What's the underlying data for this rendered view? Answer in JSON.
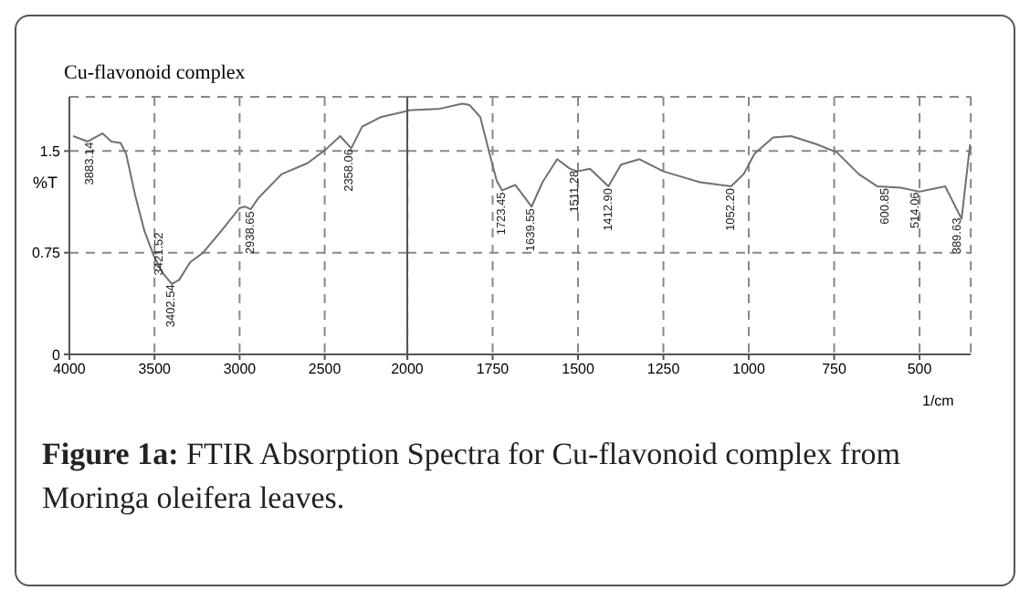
{
  "chart_data": [
    {
      "type": "line",
      "title": "Cu-flavonoid complex",
      "ylabel": "%T",
      "x": [
        3978,
        3892,
        3806,
        3753,
        3699,
        3667,
        3613,
        3559,
        3505,
        3452,
        3398,
        3355,
        3290,
        3215,
        3108,
        3000,
        2968,
        2935,
        2892,
        2753,
        2602,
        2495,
        2409,
        2344,
        2280,
        2172,
        2000
      ],
      "series": [
        {
          "color": "#707070",
          "values": [
            1.61,
            1.57,
            1.63,
            1.57,
            1.56,
            1.48,
            1.17,
            0.91,
            0.73,
            0.6,
            0.52,
            0.55,
            0.68,
            0.75,
            0.91,
            1.08,
            1.09,
            1.07,
            1.15,
            1.33,
            1.41,
            1.51,
            1.61,
            1.52,
            1.68,
            1.75,
            1.8
          ]
        }
      ],
      "xlim": [
        4000,
        2000
      ],
      "xticks": [
        4000,
        3500,
        3000,
        2500,
        {
          "value": 2000,
          "label": null
        }
      ],
      "ylim": [
        0,
        1.9
      ],
      "yticks": [
        0,
        0.75,
        1.5
      ],
      "grid": true,
      "marker": "none",
      "line_style": "solid",
      "annotations": [
        {
          "text": "3883.14",
          "x": 3883.14,
          "y": 1.58
        },
        {
          "text": "3421.52",
          "x": 3421.52,
          "y": 0.57
        },
        {
          "text": "3402.54",
          "x": 3402.54,
          "y": 0.53
        },
        {
          "text": "2938.65",
          "x": 2938.65,
          "y": 1.07
        },
        {
          "text": "2358.06",
          "x": 2358.06,
          "y": 1.53
        }
      ]
    },
    {
      "type": "line",
      "xlabel": "1/cm",
      "x": [
        2000,
        1909,
        1839,
        1818,
        1786,
        1759,
        1738,
        1722,
        1684,
        1636,
        1604,
        1561,
        1524,
        1502,
        1465,
        1411,
        1374,
        1320,
        1250,
        1143,
        1052,
        1015,
        983,
        929,
        876,
        801,
        742,
        678,
        624,
        555,
        500,
        425,
        393,
        377,
        352
      ],
      "series": [
        {
          "color": "#707070",
          "values": [
            1.8,
            1.81,
            1.85,
            1.84,
            1.75,
            1.48,
            1.28,
            1.21,
            1.25,
            1.09,
            1.27,
            1.44,
            1.37,
            1.35,
            1.37,
            1.24,
            1.4,
            1.44,
            1.35,
            1.27,
            1.24,
            1.33,
            1.48,
            1.6,
            1.61,
            1.55,
            1.49,
            1.33,
            1.24,
            1.23,
            1.2,
            1.24,
            1.08,
            1.0,
            1.55
          ]
        }
      ],
      "xlim": [
        2000,
        350
      ],
      "xticks": [
        2000,
        1750,
        1500,
        1250,
        1000,
        750,
        500
      ],
      "ylim": [
        0,
        1.9
      ],
      "yticks": [
        0,
        0.75,
        1.5
      ],
      "grid": true,
      "marker": "none",
      "line_style": "solid",
      "tick_labels": "x",
      "annotations": [
        {
          "text": "1723.45",
          "x": 1723.45,
          "y": 1.21
        },
        {
          "text": "1639.55",
          "x": 1639.55,
          "y": 1.09
        },
        {
          "text": "1511.28",
          "x": 1511.28,
          "y": 1.37
        },
        {
          "text": "1412.90",
          "x": 1412.9,
          "y": 1.24
        },
        {
          "text": "1052.20",
          "x": 1052.2,
          "y": 1.24
        },
        {
          "text": "600.85",
          "x": 600.85,
          "y": 1.24
        },
        {
          "text": "514.06",
          "x": 514.06,
          "y": 1.21
        },
        {
          "text": "389.63",
          "x": 389.63,
          "y": 1.02
        },
        "Figure 1a: FTIR Absorption Spectra for Cu-flavonoid complex from Moringa oleifera leaves."
      ]
    }
  ]
}
